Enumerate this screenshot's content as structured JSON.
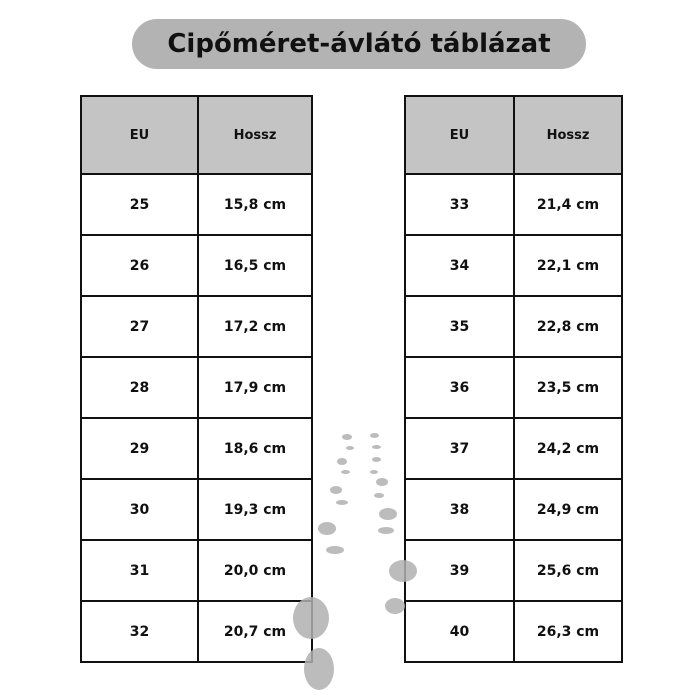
{
  "title": "Cipőméret-ávlátó táblázat",
  "left_table": {
    "headers": [
      "EU",
      "Hossz"
    ],
    "rows": [
      [
        "25",
        "15,8 cm"
      ],
      [
        "26",
        "16,5 cm"
      ],
      [
        "27",
        "17,2 cm"
      ],
      [
        "28",
        "17,9 cm"
      ],
      [
        "29",
        "18,6 cm"
      ],
      [
        "30",
        "19,3 cm"
      ],
      [
        "31",
        "20,0 cm"
      ],
      [
        "32",
        "20,7 cm"
      ]
    ]
  },
  "right_table": {
    "headers": [
      "EU",
      "Hossz"
    ],
    "rows": [
      [
        "33",
        "21,4 cm"
      ],
      [
        "34",
        "22,1 cm"
      ],
      [
        "35",
        "22,8 cm"
      ],
      [
        "36",
        "23,5 cm"
      ],
      [
        "37",
        "24,2 cm"
      ],
      [
        "38",
        "24,9 cm"
      ],
      [
        "39",
        "25,6 cm"
      ],
      [
        "40",
        "26,3 cm"
      ]
    ]
  },
  "colors": {
    "header_bg": "#c4c4c4",
    "title_bg": "#b3b3b3",
    "footprints": "#b0b0b0"
  },
  "decoration": "footprints-icon"
}
